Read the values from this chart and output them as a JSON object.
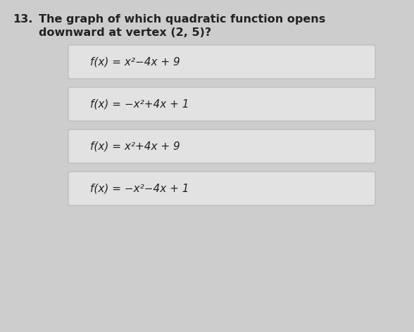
{
  "question_number": "13.",
  "question_line1": "The graph of which quadratic function opens",
  "question_line2": "downward at vertex (2, 5)?",
  "options": [
    "f(x) = x²−4x + 9",
    "f(x) = −x²+4x + 1",
    "f(x) = x²+4x + 9",
    "f(x) = −x²−4x + 1"
  ],
  "bg_color": "#cdcdcd",
  "box_color": "#e2e2e2",
  "box_edge_color": "#b8b8b8",
  "question_fontsize": 11.5,
  "option_fontsize": 11,
  "text_color": "#222222"
}
